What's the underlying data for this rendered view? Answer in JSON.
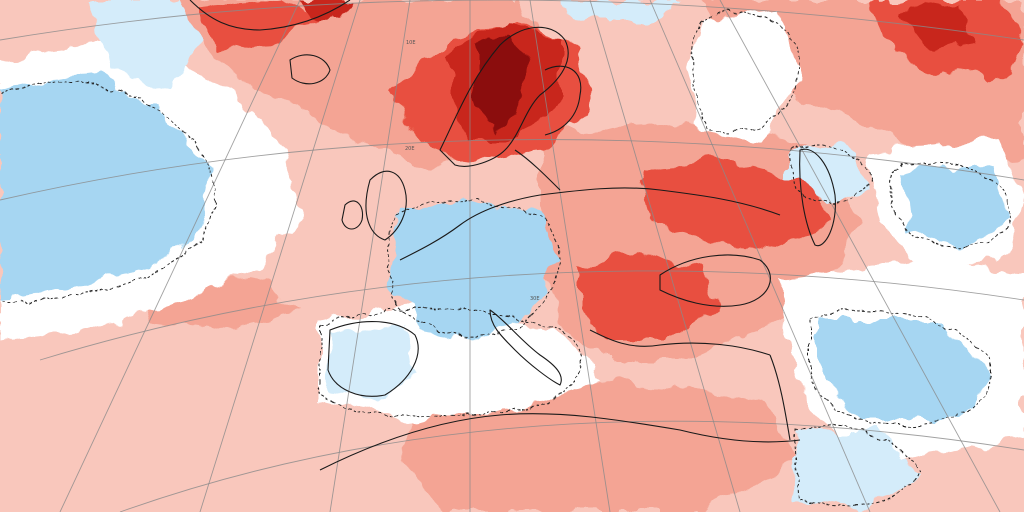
{
  "map": {
    "kind": "temperature-anomaly",
    "region": "europe",
    "palette": {
      "deep_red": "#8b0e0e",
      "dark_red": "#c8261c",
      "red": "#e8503f",
      "salmon": "#f4a494",
      "light_salmon": "#f9c7bc",
      "white": "#ffffff",
      "pale_blue": "#d4ecfa",
      "light_blue": "#a6d6f2",
      "blue": "#6db6e8",
      "contour": "#222222",
      "coastline": "#1a1a1a",
      "graticule": "#8a8a8a"
    },
    "graticule_labels": [
      "10E",
      "20E",
      "30E"
    ]
  }
}
